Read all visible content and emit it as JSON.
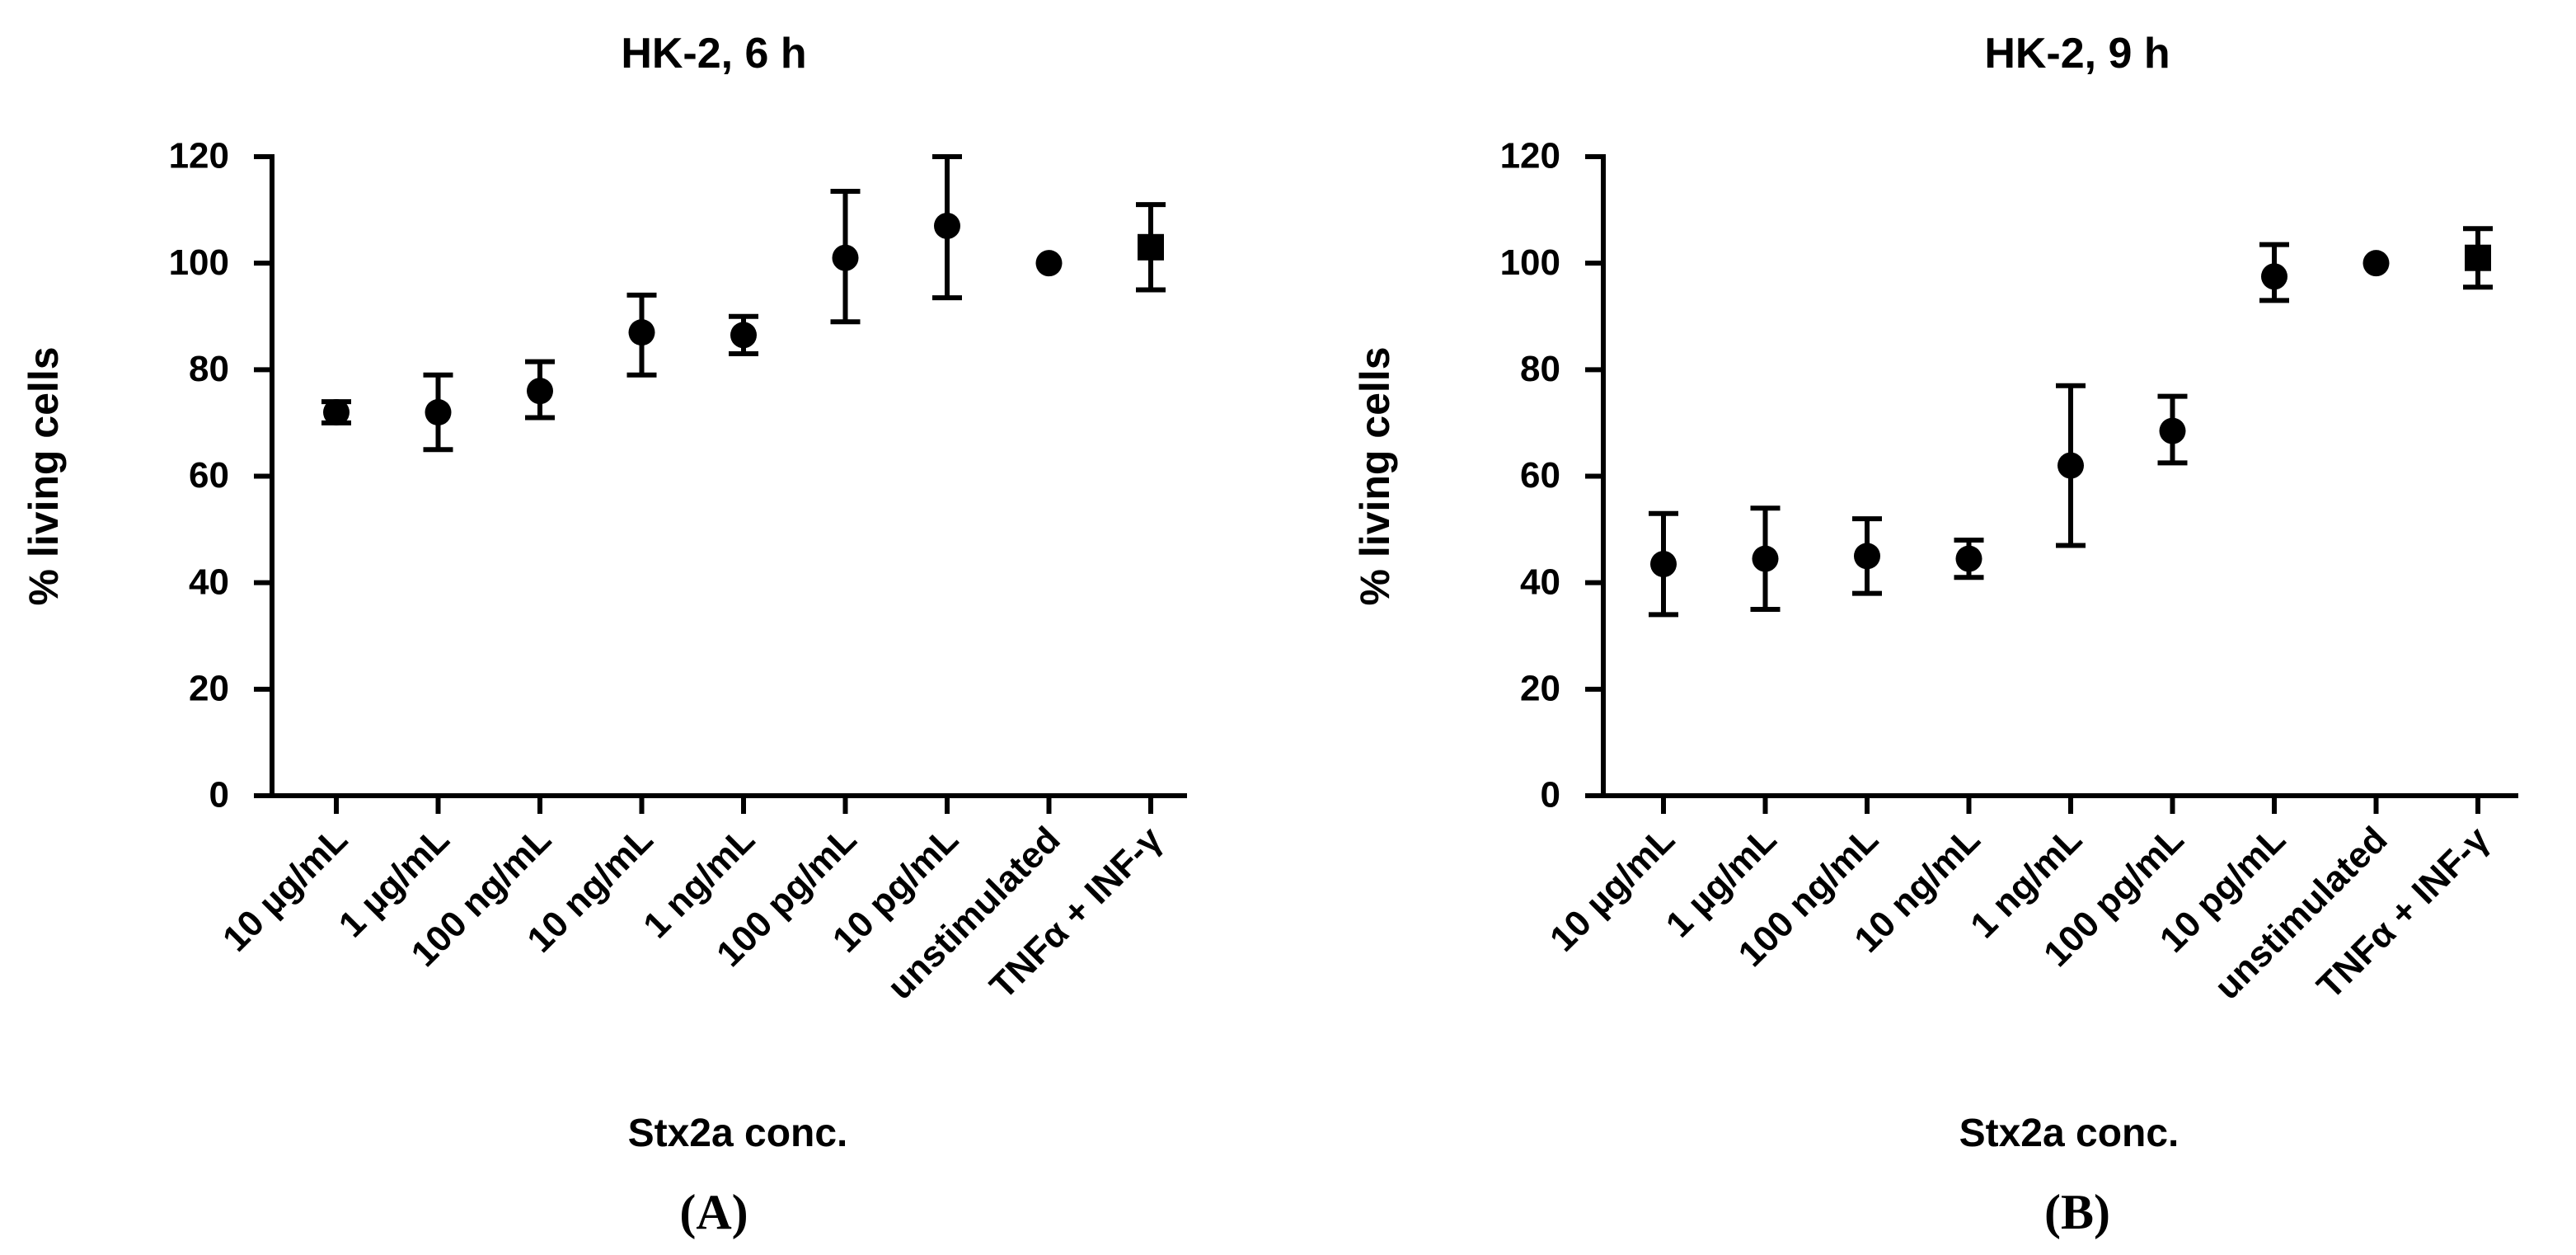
{
  "chart_data": [
    {
      "type": "scatter",
      "title": "HK-2, 6 h",
      "xlabel": "Stx2a conc.",
      "ylabel": "% living cells",
      "panel_label": "(A)",
      "ylim": [
        0,
        120
      ],
      "yticks": [
        "0",
        "20",
        "40",
        "60",
        "80",
        "100",
        "120"
      ],
      "categories": [
        "10 µg/mL",
        "1 µg/mL",
        "100 ng/mL",
        "10 ng/mL",
        "1 ng/mL",
        "100 pg/mL",
        "10 pg/mL",
        "unstimulated",
        "TNFα + INF-γ"
      ],
      "values": [
        72,
        72,
        76,
        87,
        86.5,
        101,
        107,
        100,
        103
      ],
      "error_low": [
        70,
        65,
        71,
        79,
        83,
        89,
        93.5,
        100,
        95
      ],
      "error_high": [
        74,
        79,
        81.5,
        94,
        90,
        113.5,
        120,
        100,
        111
      ],
      "markers": [
        "circle",
        "circle",
        "circle",
        "circle",
        "circle",
        "circle",
        "circle",
        "circle",
        "square"
      ]
    },
    {
      "type": "scatter",
      "title": "HK-2, 9 h",
      "xlabel": "Stx2a conc.",
      "ylabel": "% living cells",
      "panel_label": "(B)",
      "ylim": [
        0,
        120
      ],
      "yticks": [
        "0",
        "20",
        "40",
        "60",
        "80",
        "100",
        "120"
      ],
      "categories": [
        "10 µg/mL",
        "1 µg/mL",
        "100 ng/mL",
        "10 ng/mL",
        "1 ng/mL",
        "100 pg/mL",
        "10 pg/mL",
        "unstimulated",
        "TNFα + INF-γ"
      ],
      "values": [
        43.5,
        44.5,
        45,
        44.5,
        62,
        68.5,
        97.5,
        100,
        101
      ],
      "error_low": [
        34,
        35,
        38,
        41,
        47,
        62.5,
        93,
        100,
        95.5
      ],
      "error_high": [
        53,
        54,
        52,
        48,
        77,
        75,
        103.5,
        100,
        106.5
      ],
      "markers": [
        "circle",
        "circle",
        "circle",
        "circle",
        "circle",
        "circle",
        "circle",
        "circle",
        "square"
      ]
    }
  ]
}
